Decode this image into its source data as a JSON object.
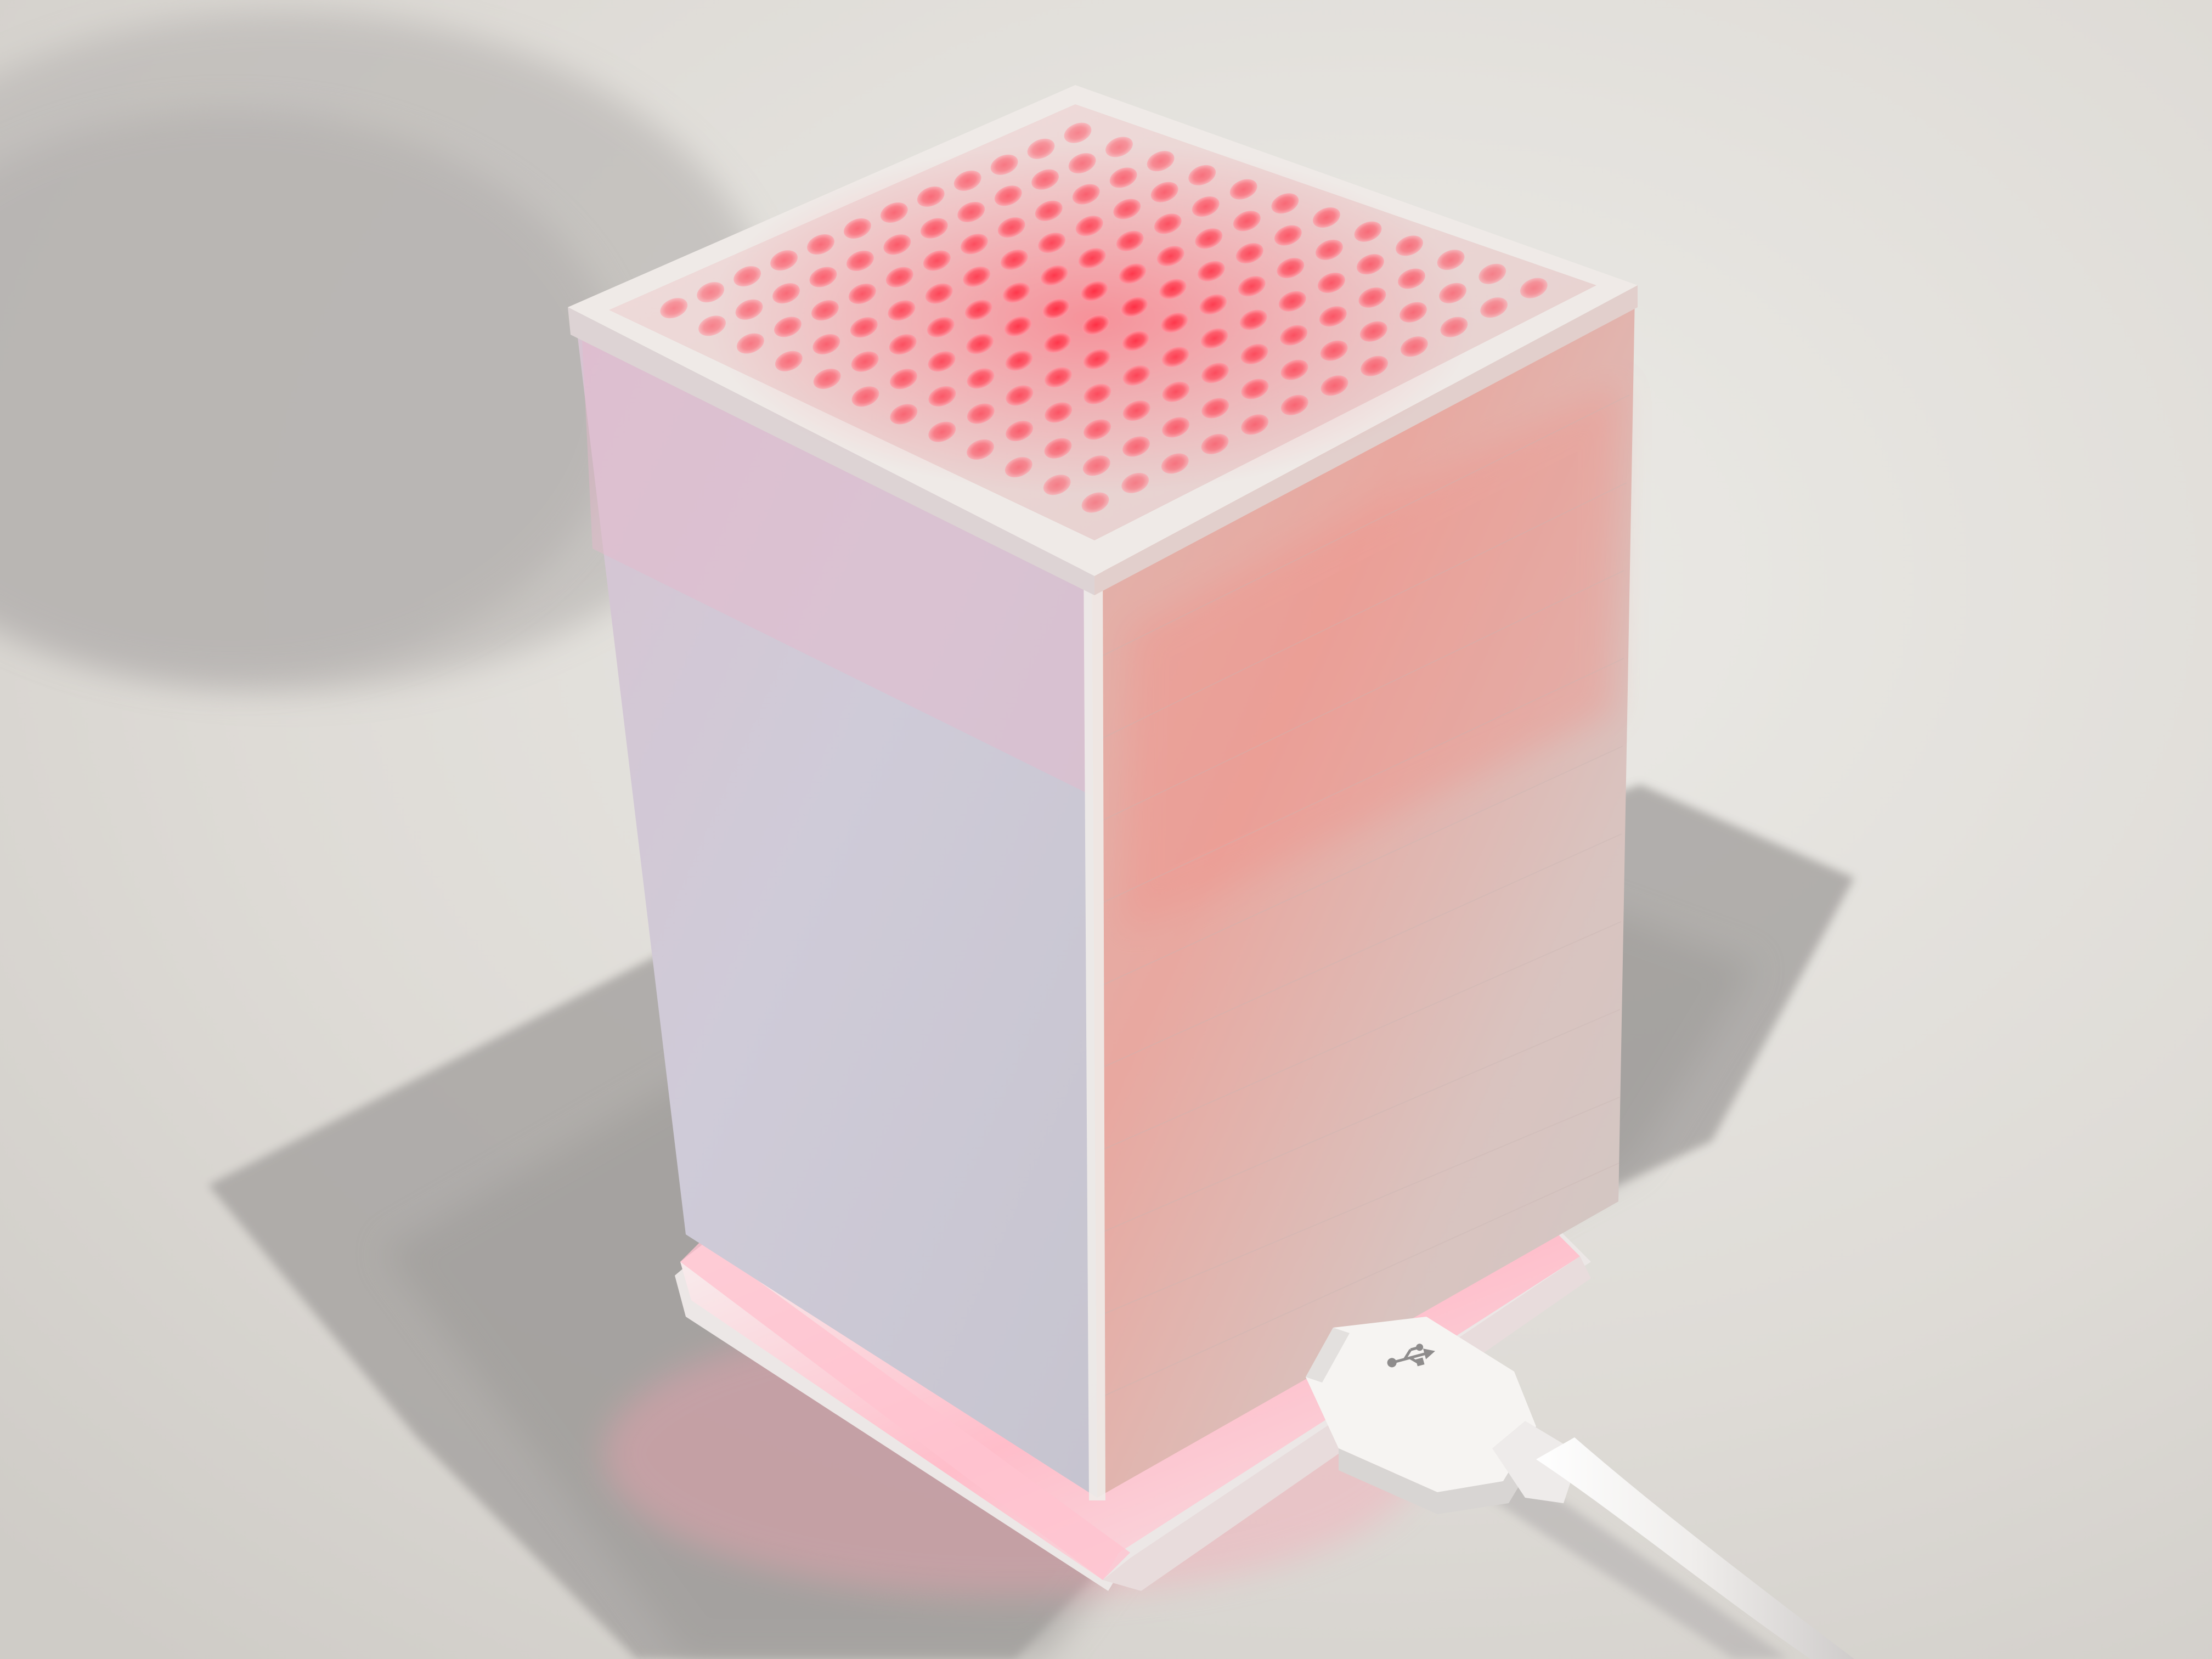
{
  "photo": {
    "subject": "3d-printed-led-matrix-lamp",
    "colors": {
      "table": "#dcd9d4",
      "table_light": "#e9e7e2",
      "shadow": "#a9a6a3",
      "shadow_dark": "#9a9797",
      "cube_left": "#cdc8d3",
      "cube_right": "#d6b9b4",
      "cube_right_glow": "#e7a59f",
      "cube_edge": "#efece9",
      "top_rim": "#efeae7",
      "top_face": "#e9d7d5",
      "led_core": "#ff3347",
      "led_halo": "#ff9aa6",
      "base_plate": "#f4f0ef",
      "base_glow": "#ff9fb0",
      "cable": "#f3f1ef",
      "cable_shadow": "#b9b6b5",
      "usb_symbol": "#8e8c8c"
    },
    "led_matrix": {
      "rows": 12,
      "cols": 12,
      "brightness": 0.85
    },
    "icons": [
      "usb-icon"
    ]
  }
}
